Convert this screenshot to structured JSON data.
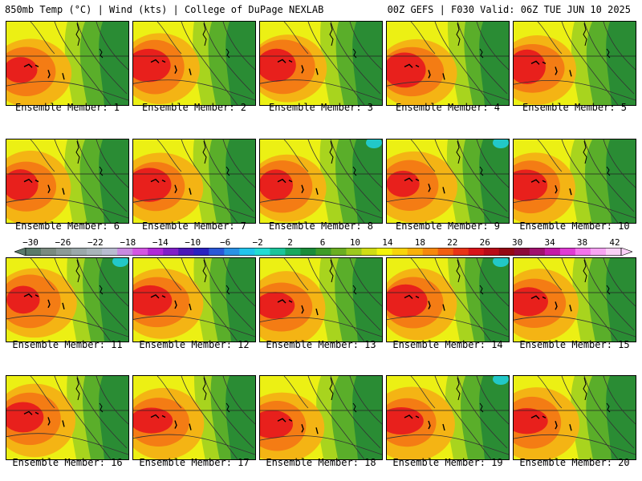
{
  "header": {
    "left": "850mb Temp (°C) | Wind (kts) | College of DuPage NEXLAB",
    "right": "00Z GEFS | F030 Valid: 06Z TUE JUN 10 2025"
  },
  "members": [
    "Ensemble Member: 1",
    "Ensemble Member: 2",
    "Ensemble Member: 3",
    "Ensemble Member: 4",
    "Ensemble Member: 5",
    "Ensemble Member: 6",
    "Ensemble Member: 7",
    "Ensemble Member: 8",
    "Ensemble Member: 9",
    "Ensemble Member: 10",
    "Ensemble Member: 11",
    "Ensemble Member: 12",
    "Ensemble Member: 13",
    "Ensemble Member: 14",
    "Ensemble Member: 15",
    "Ensemble Member: 16",
    "Ensemble Member: 17",
    "Ensemble Member: 18",
    "Ensemble Member: 19",
    "Ensemble Member: 20"
  ],
  "colorbar": {
    "tick_labels": [
      "−30",
      "−26",
      "−22",
      "−18",
      "−14",
      "−10",
      "−6",
      "−2",
      "2",
      "6",
      "10",
      "14",
      "18",
      "22",
      "26",
      "30",
      "34",
      "38",
      "42"
    ],
    "colors": [
      "#5a7a6a",
      "#7a8a80",
      "#8c9a96",
      "#9aa8aa",
      "#a8b4ba",
      "#b8bcd0",
      "#c88ae0",
      "#d456e4",
      "#b02ad8",
      "#8020c8",
      "#4a18b8",
      "#2a22c0",
      "#2a58d8",
      "#2a92e6",
      "#22c4ec",
      "#24dcd4",
      "#1cc49a",
      "#1aa85e",
      "#1a8c3a",
      "#3e9c28",
      "#6aae22",
      "#9cc81e",
      "#d0dc14",
      "#f4f40a",
      "#f8d40a",
      "#f8b00a",
      "#f6880e",
      "#f05e12",
      "#e83418",
      "#d8141a",
      "#b80c18",
      "#940814",
      "#8c0a3a",
      "#a0106e",
      "#c41aa6",
      "#e03cd4",
      "#f474ec",
      "#f8a4f4",
      "#fcd0f8"
    ]
  },
  "map_colors": {
    "hot": "#e8201c",
    "warm": "#f47c14",
    "mild": "#f4b414",
    "yellow": "#ecf014",
    "lime": "#a8d41e",
    "green": "#5aae2a",
    "dgreen": "#2a8c34",
    "cyan": "#22c8c8"
  }
}
